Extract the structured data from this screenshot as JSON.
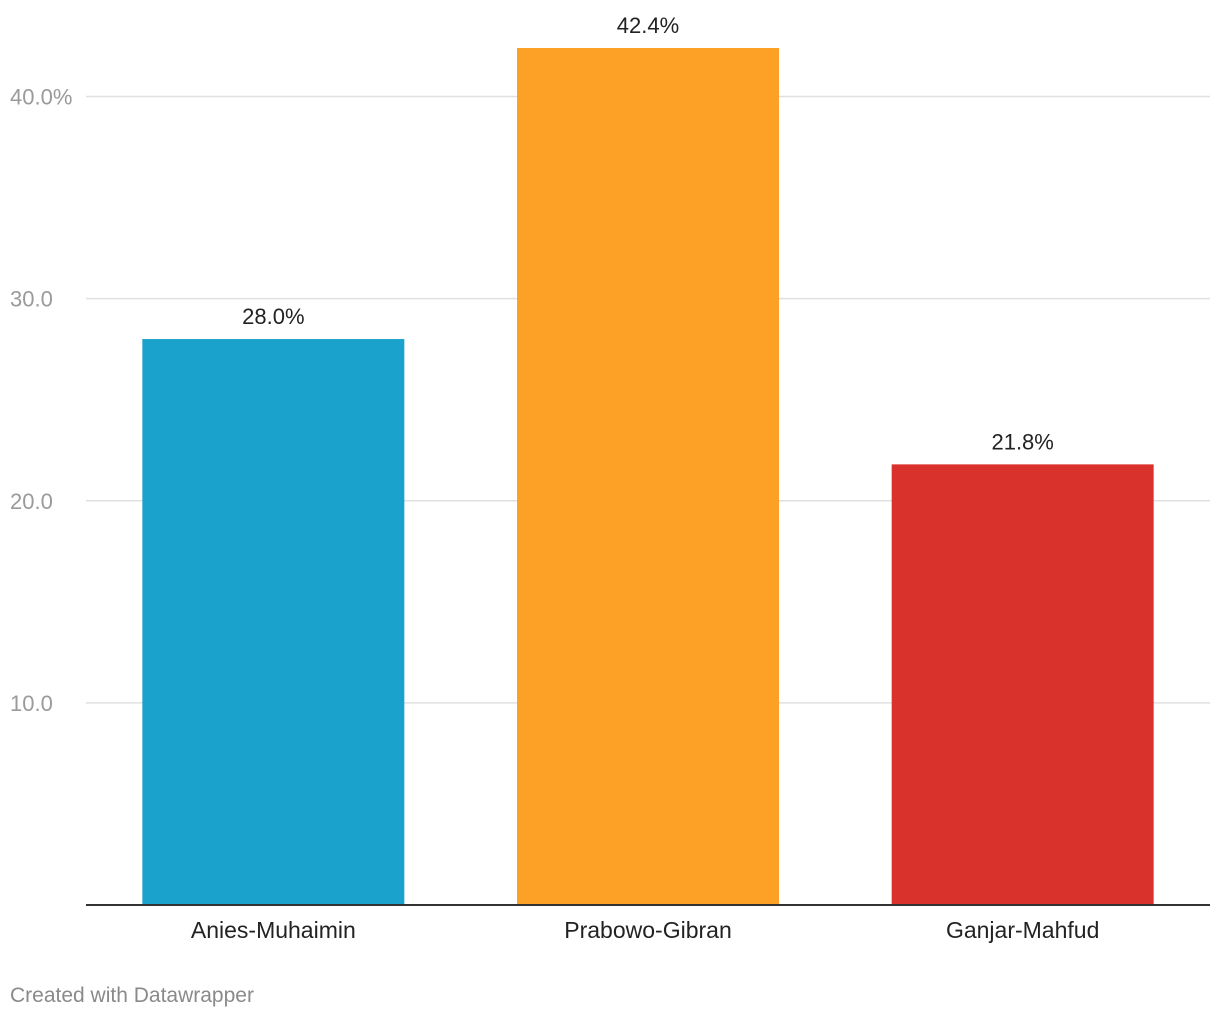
{
  "chart_data": {
    "type": "bar",
    "categories": [
      "Anies-Muhaimin",
      "Prabowo-Gibran",
      "Ganjar-Mahfud"
    ],
    "values": [
      28.0,
      42.4,
      21.8
    ],
    "value_labels": [
      "28.0%",
      "42.4%",
      "21.8%"
    ],
    "colors": [
      "#1aa1cc",
      "#fca126",
      "#d9322c"
    ],
    "title": "",
    "xlabel": "",
    "ylabel": "",
    "ylim": [
      0,
      42.4
    ],
    "y_ticks": [
      10,
      20,
      30,
      40
    ],
    "y_tick_labels": [
      "10.0",
      "20.0",
      "30.0",
      "40.0%"
    ],
    "grid": true,
    "legend": "none"
  },
  "footer": {
    "credit": "Created with Datawrapper"
  }
}
